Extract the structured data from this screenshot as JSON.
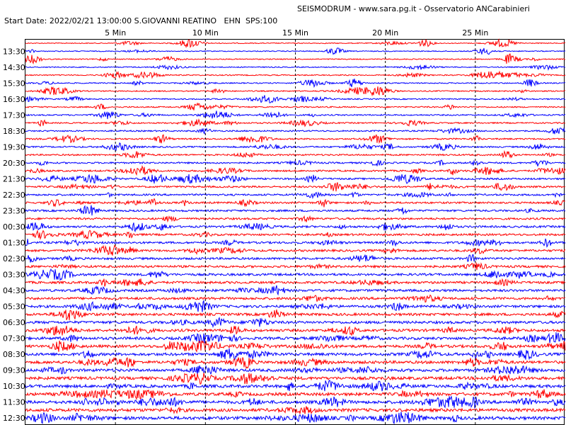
{
  "header": {
    "title": "SEISMODRUM - www.sara.pg.it - Osservatorio ANCarabinieri",
    "info": "Start Date: 2022/02/21 13:00:00 S.GIOVANNI REATINO   EHN  SPS:100"
  },
  "axis": {
    "xlim": [
      0,
      30
    ],
    "xticks": [
      {
        "value": 5,
        "label": "5 Min"
      },
      {
        "value": 10,
        "label": "10 Min"
      },
      {
        "value": 15,
        "label": "15 Min"
      },
      {
        "value": 20,
        "label": "20 Min"
      },
      {
        "value": 25,
        "label": "25 Min"
      }
    ],
    "row_labels": [
      "13:30",
      "14:30",
      "15:30",
      "16:30",
      "17:30",
      "18:30",
      "19:30",
      "20:30",
      "21:30",
      "22:30",
      "23:30",
      "00:30",
      "01:30",
      "02:30",
      "03:30",
      "04:30",
      "05:30",
      "06:30",
      "07:30",
      "08:30",
      "09:30",
      "10:30",
      "11:30",
      "12:30"
    ]
  }
}
